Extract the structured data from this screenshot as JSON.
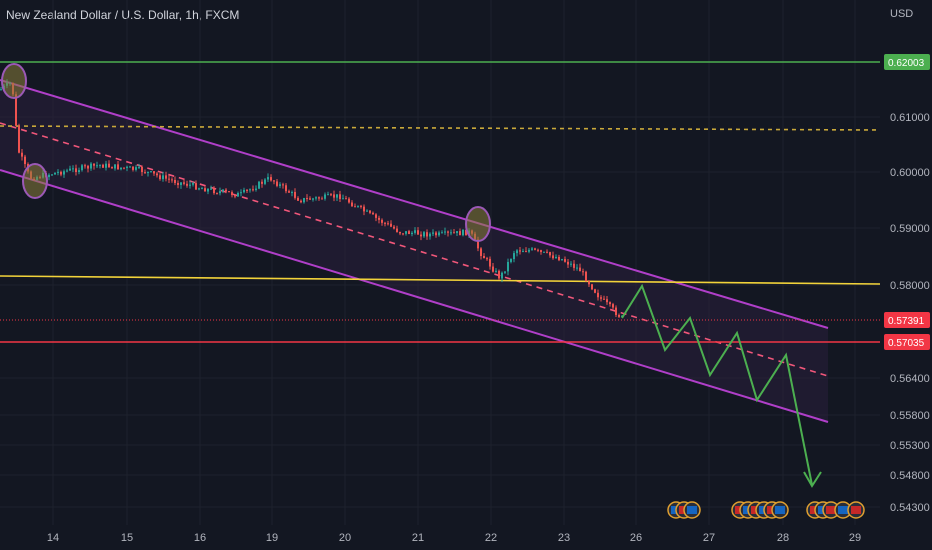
{
  "chart_data": {
    "type": "candlestick",
    "title": "New Zealand Dollar / U.S. Dollar, 1h, FXCM",
    "currency_label": "USD",
    "x_ticks": [
      "14",
      "15",
      "16",
      "19",
      "20",
      "21",
      "22",
      "23",
      "26",
      "27",
      "28",
      "29"
    ],
    "y_ticks": [
      "0.61000",
      "0.60000",
      "0.59000",
      "0.58000",
      "0.56400",
      "0.55800",
      "0.55300",
      "0.54800",
      "0.54300"
    ],
    "price_tags": [
      {
        "label": "0.62003",
        "color": "#4caf50"
      },
      {
        "label": "0.57391",
        "color": "#f23645"
      },
      {
        "label": "0.57035",
        "color": "#f23645"
      }
    ],
    "levels": [
      {
        "value": 0.62003,
        "color": "#4caf50",
        "style": "solid"
      },
      {
        "value": 0.6088,
        "color": "#c9a83a",
        "style": "dashed"
      },
      {
        "value": 0.58,
        "color": "#f2d33a",
        "style": "solid"
      },
      {
        "value": 0.57391,
        "color": "#f23645",
        "style": "dotted"
      },
      {
        "value": 0.57035,
        "color": "#f23645",
        "style": "solid"
      }
    ],
    "channel": {
      "upper_color": "#b03fc9",
      "mid_color": "#f2577a",
      "fill": "#2a1f3d"
    },
    "projection_color": "#4caf50",
    "up_color": "#26a69a",
    "down_color": "#ef5350",
    "highlight_color": "#9b59b6",
    "grid": true
  }
}
